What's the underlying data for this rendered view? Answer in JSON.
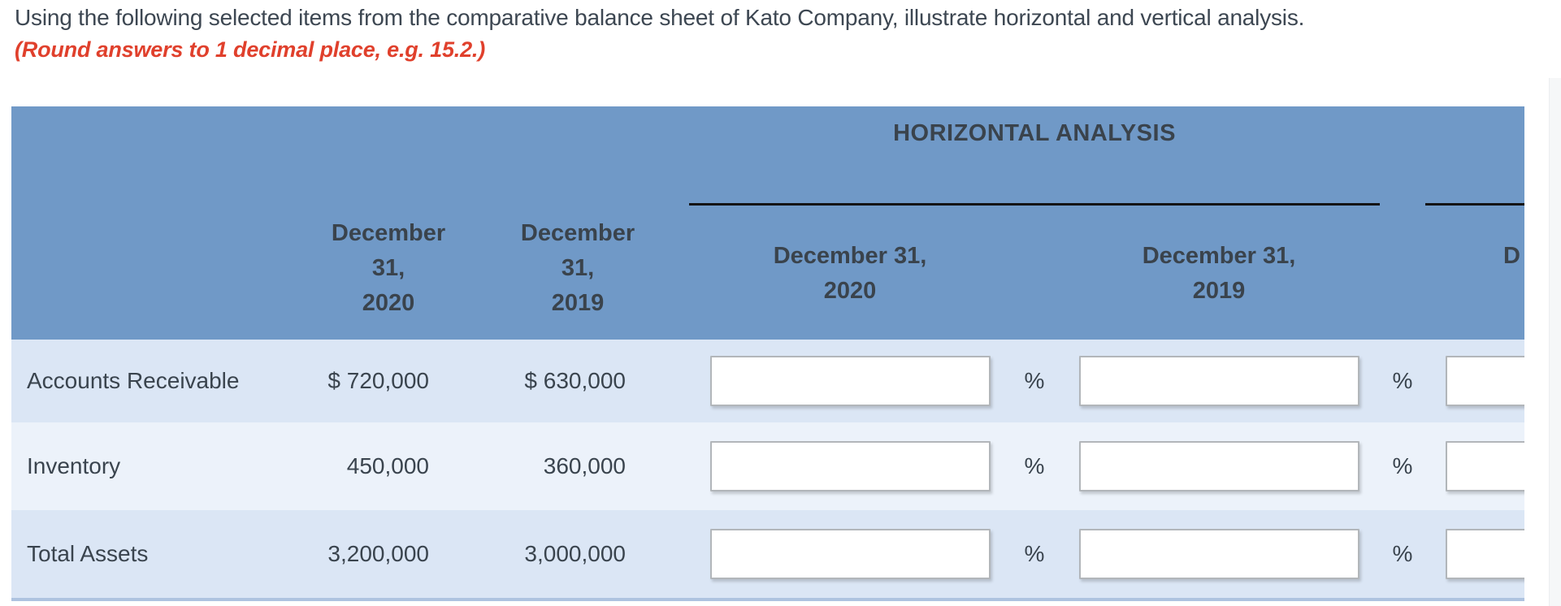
{
  "question": {
    "text": "Using the following selected items from the comparative balance sheet of Kato Company, illustrate horizontal and vertical analysis.",
    "note": "(Round answers to 1 decimal place, e.g. 15.2.)"
  },
  "table": {
    "group_title": "HORIZONTAL ANALYSIS",
    "headers": {
      "amount_2020": [
        "December",
        "31,",
        "2020"
      ],
      "amount_2019": [
        "December",
        "31,",
        "2019"
      ],
      "ha_2020": [
        "December 31,",
        "2020"
      ],
      "ha_2019": [
        "December 31,",
        "2019"
      ],
      "next_column_clipped": "D"
    },
    "percent": "%",
    "rows": [
      {
        "label": "Accounts Receivable",
        "amount_2020": "$ 720,000",
        "amount_2019": "$ 630,000"
      },
      {
        "label": "Inventory",
        "amount_2020": "450,000",
        "amount_2019": "360,000"
      },
      {
        "label": "Total Assets",
        "amount_2020": "3,200,000",
        "amount_2019": "3,000,000"
      }
    ],
    "inputs": {
      "ha_2020": "",
      "ha_2019": "",
      "va": ""
    }
  },
  "colors": {
    "header_blue": "#7099C7",
    "row_shade_dark": "#DBE6F5",
    "row_shade_light": "#ECF2FA",
    "bottom_edge_blue": "#AEC3E0",
    "note_red": "#E0402C",
    "text_dark": "#3A444E",
    "rule_black": "#141414"
  }
}
